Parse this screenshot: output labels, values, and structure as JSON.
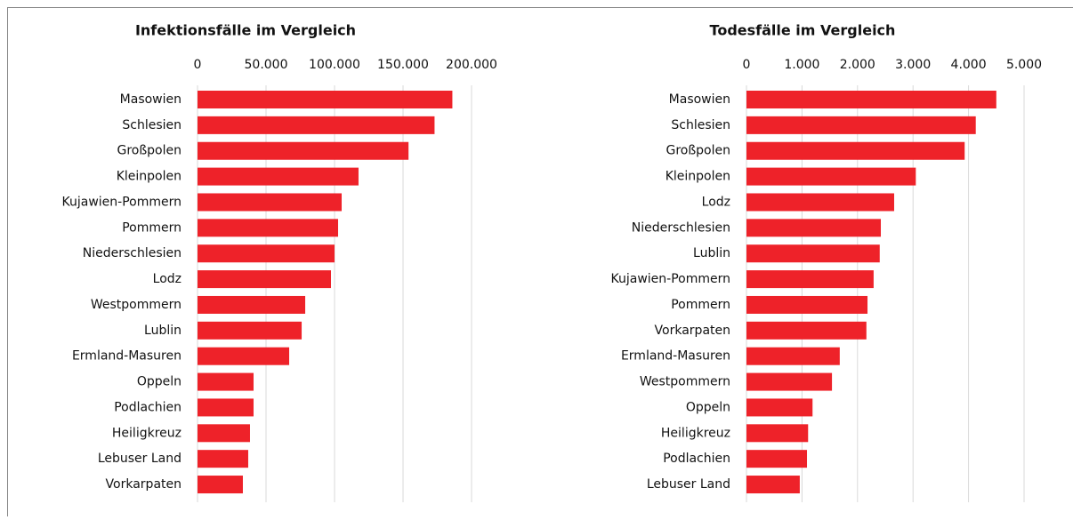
{
  "chart_data": [
    {
      "type": "bar",
      "orientation": "horizontal",
      "title": "Infektionsfälle im Vergleich",
      "color": "#ee2229",
      "categories": [
        "Masowien",
        "Schlesien",
        "Großpolen",
        "Kleinpolen",
        "Kujawien-Pommern",
        "Pommern",
        "Niederschlesien",
        "Lodz",
        "Westpommern",
        "Lublin",
        "Ermland-Masuren",
        "Oppeln",
        "Podlachien",
        "Heiligkreuz",
        "Lebuser Land",
        "Vorkarpaten"
      ],
      "values": [
        186000,
        173000,
        154000,
        117500,
        105200,
        102600,
        100000,
        97400,
        78600,
        76000,
        66900,
        40900,
        40900,
        38300,
        37000,
        33100
      ],
      "xlim": [
        0,
        200000
      ],
      "xticks": [
        0,
        {
          "value": 50000,
          "label": "50.000"
        },
        {
          "value": 100000,
          "label": "100.000"
        },
        {
          "value": 150000,
          "label": "150.000"
        },
        {
          "value": 200000,
          "label": "200.000"
        }
      ],
      "grid": true
    },
    {
      "type": "bar",
      "orientation": "horizontal",
      "title": "Todesfälle im Vergleich",
      "color": "#ee2229",
      "categories": [
        "Masowien",
        "Schlesien",
        "Großpolen",
        "Kleinpolen",
        "Lodz",
        "Niederschlesien",
        "Lublin",
        "Kujawien-Pommern",
        "Pommern",
        "Vorkarpaten",
        "Ermland-Masuren",
        "Westpommern",
        "Oppeln",
        "Heiligkreuz",
        "Podlachien",
        "Lebuser Land"
      ],
      "values": [
        4500,
        4130,
        3930,
        3050,
        2660,
        2420,
        2400,
        2290,
        2180,
        2160,
        1680,
        1540,
        1190,
        1110,
        1090,
        960
      ],
      "xlim": [
        0,
        5000
      ],
      "xticks": [
        0,
        {
          "value": 1000,
          "label": "1.000"
        },
        {
          "value": 2000,
          "label": "2.000"
        },
        {
          "value": 3000,
          "label": "3.000"
        },
        {
          "value": 4000,
          "label": "4.000"
        },
        {
          "value": 5000,
          "label": "5.000"
        }
      ],
      "grid": true
    }
  ]
}
